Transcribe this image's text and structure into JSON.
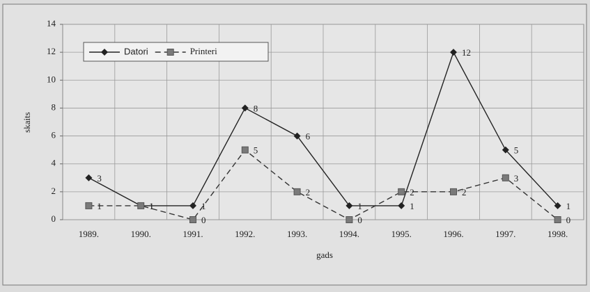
{
  "chart_data": {
    "type": "line",
    "categories": [
      "1989.",
      "1990.",
      "1991.",
      "1992.",
      "1993.",
      "1994.",
      "1995.",
      "1996.",
      "1997.",
      "1998."
    ],
    "series": [
      {
        "name": "Datori",
        "color": "#222222",
        "dash": false,
        "marker": "diamond",
        "values": [
          3,
          1,
          1,
          8,
          6,
          1,
          1,
          12,
          5,
          1
        ]
      },
      {
        "name": "Printeri",
        "color": "#333333",
        "dash": true,
        "marker": "square",
        "values": [
          1,
          1,
          0,
          5,
          2,
          0,
          2,
          2,
          3,
          0
        ]
      }
    ],
    "ylim": [
      0,
      14
    ],
    "yticks": [
      0,
      2,
      4,
      6,
      8,
      10,
      12,
      14
    ],
    "xlabel": "gads",
    "ylabel": "skaits",
    "grid": true,
    "legend": "top-left"
  }
}
